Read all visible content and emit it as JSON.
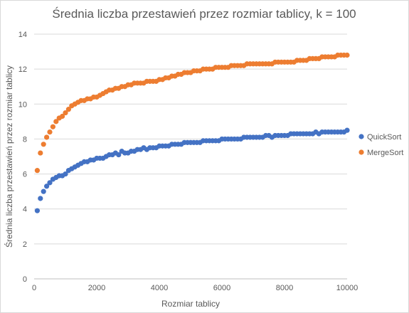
{
  "chart_data": {
    "type": "scatter",
    "title": "Średnia liczba przestawień przez rozmiar tablicy, k = 100",
    "xlabel": "Rozmiar tablicy",
    "ylabel": "Średnia liczba przestawień przez rozmiar tablicy",
    "xlim": [
      0,
      10000
    ],
    "ylim": [
      0,
      14
    ],
    "x_ticks": [
      "0",
      "2000",
      "4000",
      "6000",
      "8000",
      "10000"
    ],
    "y_ticks": [
      "0",
      "2",
      "4",
      "6",
      "8",
      "10",
      "12",
      "14"
    ],
    "grid": "horizontal",
    "legend_position": "right",
    "series": [
      {
        "name": "QuickSort",
        "color": "#4472C4",
        "x": [
          100,
          200,
          300,
          400,
          500,
          600,
          700,
          800,
          900,
          1000,
          1100,
          1200,
          1300,
          1400,
          1500,
          1600,
          1700,
          1800,
          1900,
          2000,
          2100,
          2200,
          2300,
          2400,
          2500,
          2600,
          2700,
          2800,
          2900,
          3000,
          3100,
          3200,
          3300,
          3400,
          3500,
          3600,
          3700,
          3800,
          3900,
          4000,
          4100,
          4200,
          4300,
          4400,
          4500,
          4600,
          4700,
          4800,
          4900,
          5000,
          5100,
          5200,
          5300,
          5400,
          5500,
          5600,
          5700,
          5800,
          5900,
          6000,
          6100,
          6200,
          6300,
          6400,
          6500,
          6600,
          6700,
          6800,
          6900,
          7000,
          7100,
          7200,
          7300,
          7400,
          7500,
          7600,
          7700,
          7800,
          7900,
          8000,
          8100,
          8200,
          8300,
          8400,
          8500,
          8600,
          8700,
          8800,
          8900,
          9000,
          9100,
          9200,
          9300,
          9400,
          9500,
          9600,
          9700,
          9800,
          9900,
          10000
        ],
        "y": [
          3.9,
          4.6,
          5.0,
          5.3,
          5.5,
          5.7,
          5.8,
          5.9,
          5.9,
          6.0,
          6.2,
          6.3,
          6.4,
          6.5,
          6.6,
          6.7,
          6.7,
          6.8,
          6.8,
          6.9,
          6.9,
          6.9,
          7.0,
          7.1,
          7.1,
          7.2,
          7.1,
          7.3,
          7.2,
          7.2,
          7.3,
          7.3,
          7.4,
          7.4,
          7.5,
          7.4,
          7.5,
          7.5,
          7.5,
          7.6,
          7.6,
          7.6,
          7.6,
          7.7,
          7.7,
          7.7,
          7.7,
          7.8,
          7.8,
          7.8,
          7.8,
          7.8,
          7.8,
          7.9,
          7.9,
          7.9,
          7.9,
          7.9,
          7.9,
          8.0,
          8.0,
          8.0,
          8.0,
          8.0,
          8.0,
          8.0,
          8.1,
          8.1,
          8.1,
          8.1,
          8.1,
          8.1,
          8.1,
          8.2,
          8.2,
          8.1,
          8.2,
          8.2,
          8.2,
          8.2,
          8.2,
          8.3,
          8.3,
          8.3,
          8.3,
          8.3,
          8.3,
          8.3,
          8.3,
          8.4,
          8.3,
          8.4,
          8.4,
          8.4,
          8.4,
          8.4,
          8.4,
          8.4,
          8.4,
          8.5
        ]
      },
      {
        "name": "MergeSort",
        "color": "#ED7D31",
        "x": [
          100,
          200,
          300,
          400,
          500,
          600,
          700,
          800,
          900,
          1000,
          1100,
          1200,
          1300,
          1400,
          1500,
          1600,
          1700,
          1800,
          1900,
          2000,
          2100,
          2200,
          2300,
          2400,
          2500,
          2600,
          2700,
          2800,
          2900,
          3000,
          3100,
          3200,
          3300,
          3400,
          3500,
          3600,
          3700,
          3800,
          3900,
          4000,
          4100,
          4200,
          4300,
          4400,
          4500,
          4600,
          4700,
          4800,
          4900,
          5000,
          5100,
          5200,
          5300,
          5400,
          5500,
          5600,
          5700,
          5800,
          5900,
          6000,
          6100,
          6200,
          6300,
          6400,
          6500,
          6600,
          6700,
          6800,
          6900,
          7000,
          7100,
          7200,
          7300,
          7400,
          7500,
          7600,
          7700,
          7800,
          7900,
          8000,
          8100,
          8200,
          8300,
          8400,
          8500,
          8600,
          8700,
          8800,
          8900,
          9000,
          9100,
          9200,
          9300,
          9400,
          9500,
          9600,
          9700,
          9800,
          9900,
          10000
        ],
        "y": [
          6.2,
          7.2,
          7.7,
          8.1,
          8.4,
          8.7,
          9.0,
          9.2,
          9.3,
          9.5,
          9.7,
          9.9,
          10.0,
          10.1,
          10.2,
          10.2,
          10.3,
          10.3,
          10.4,
          10.4,
          10.5,
          10.6,
          10.7,
          10.8,
          10.8,
          10.9,
          10.9,
          11.0,
          11.0,
          11.1,
          11.1,
          11.2,
          11.2,
          11.2,
          11.2,
          11.3,
          11.3,
          11.3,
          11.3,
          11.4,
          11.4,
          11.5,
          11.5,
          11.6,
          11.6,
          11.7,
          11.7,
          11.8,
          11.8,
          11.8,
          11.9,
          11.9,
          11.9,
          12.0,
          12.0,
          12.0,
          12.0,
          12.1,
          12.1,
          12.1,
          12.1,
          12.1,
          12.2,
          12.2,
          12.2,
          12.2,
          12.2,
          12.3,
          12.3,
          12.3,
          12.3,
          12.3,
          12.3,
          12.3,
          12.3,
          12.3,
          12.4,
          12.4,
          12.4,
          12.4,
          12.4,
          12.4,
          12.4,
          12.5,
          12.5,
          12.5,
          12.5,
          12.6,
          12.6,
          12.6,
          12.6,
          12.7,
          12.7,
          12.7,
          12.7,
          12.7,
          12.8,
          12.8,
          12.8,
          12.8
        ]
      }
    ]
  }
}
